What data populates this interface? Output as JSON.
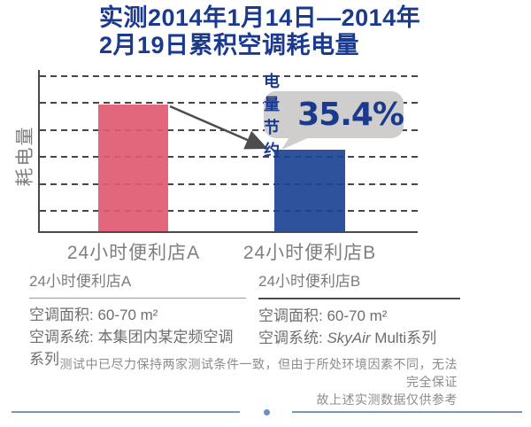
{
  "title": {
    "line1": "实测2014年1月14日—2014年",
    "line2": "2月19日累积空调耗电量"
  },
  "chart_data": {
    "type": "bar",
    "title": "实测2014年1月14日—2014年2月19日累积空调耗电量",
    "ylabel": "耗电量",
    "xlabel": "",
    "categories": [
      "24小时便利店A",
      "24小时便利店B"
    ],
    "values": [
      100,
      64.6
    ],
    "value_note": "relative consumption; no numeric axis ticks shown, store B uses 35.4% less power",
    "annotation": {
      "label": "电量节约",
      "value": "35.4%",
      "points_to": "24小时便利店B"
    },
    "bar_colors": [
      "#e05a72",
      "#1c4494"
    ],
    "grid": "6 dashed horizontal gridlines",
    "legend": "none"
  },
  "info_table": {
    "store_a": {
      "header": "24小时便利店A",
      "area": "空调面积: 60-70 m²",
      "system": "空调系统: 本集团内某定频空调系列"
    },
    "store_b": {
      "header": "24小时便利店B",
      "area": "空调面积: 60-70 m²",
      "system_prefix": "空调系统: ",
      "system_brand": "SkyAir",
      "system_suffix": " Multi系列"
    }
  },
  "disclaimer": {
    "line1": "测试中已尽力保持两家测试条件一致，但由于所处环境因素不同，无法完全保证",
    "line2": "故上述实测数据仅供参考"
  },
  "colors": {
    "title_navy": "#1a3a8e",
    "bar_a_pink": "#e05a72",
    "bar_b_blue": "#1c4494",
    "bubble_gray": "#cfcecc",
    "axis_gray": "#4a4a4a",
    "text_gray": "#7c7c7c",
    "footer_blue": "#6d8fbc"
  }
}
